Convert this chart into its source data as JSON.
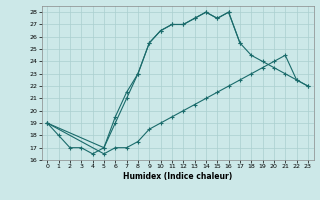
{
  "xlabel": "Humidex (Indice chaleur)",
  "bg_color": "#cce8e8",
  "line_color": "#1a6b6b",
  "grid_color": "#aacfcf",
  "xlim": [
    -0.5,
    23.5
  ],
  "ylim": [
    16,
    28.5
  ],
  "xticks": [
    0,
    1,
    2,
    3,
    4,
    5,
    6,
    7,
    8,
    9,
    10,
    11,
    12,
    13,
    14,
    15,
    16,
    17,
    18,
    19,
    20,
    21,
    22,
    23
  ],
  "yticks": [
    16,
    17,
    18,
    19,
    20,
    21,
    22,
    23,
    24,
    25,
    26,
    27,
    28
  ],
  "series": [
    {
      "x": [
        0,
        1,
        2,
        3,
        4,
        5,
        6,
        7,
        8,
        9,
        10,
        11,
        12,
        13,
        14,
        15,
        16,
        17
      ],
      "y": [
        19,
        18,
        17,
        17,
        16.5,
        17,
        19,
        21,
        23,
        25.5,
        26.5,
        27,
        27,
        27.5,
        28,
        27.5,
        28,
        25.5
      ]
    },
    {
      "x": [
        0,
        5,
        6,
        7,
        8,
        9,
        10,
        11,
        12,
        13,
        14,
        15,
        16,
        17,
        18,
        19,
        20,
        21,
        22,
        23
      ],
      "y": [
        19,
        16.5,
        17,
        17,
        17.5,
        18.5,
        19,
        19.5,
        20,
        20.5,
        21,
        21.5,
        22,
        22.5,
        23,
        23.5,
        24,
        24.5,
        22.5,
        22
      ]
    },
    {
      "x": [
        0,
        5,
        6,
        7,
        8,
        9,
        10,
        11,
        12,
        13,
        14,
        15,
        16,
        17,
        18,
        19,
        20,
        21,
        22,
        23
      ],
      "y": [
        19,
        17,
        19.5,
        21.5,
        23,
        25.5,
        26.5,
        27,
        27,
        27.5,
        28,
        27.5,
        28,
        25.5,
        24.5,
        24,
        23.5,
        23,
        22.5,
        22
      ]
    }
  ]
}
